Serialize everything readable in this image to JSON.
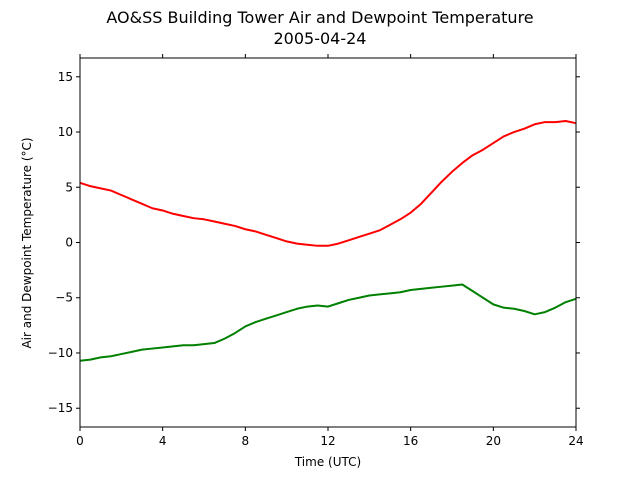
{
  "chart_data": {
    "type": "line",
    "title": "AO&SS Building Tower Air and Dewpoint Temperature",
    "subtitle": "2005-04-24",
    "xlabel": "Time (UTC)",
    "ylabel": "Air and Dewpoint Temperature (°C)",
    "xlim": [
      0,
      24
    ],
    "ylim": [
      -16.7,
      16.7
    ],
    "xticks": [
      0,
      4,
      8,
      12,
      16,
      20,
      24
    ],
    "yticks": [
      -15,
      -10,
      -5,
      0,
      5,
      10,
      15
    ],
    "grid": false,
    "legend": "none",
    "series": [
      {
        "color": "#ff0000",
        "x": [
          0,
          0.5,
          1,
          1.5,
          2,
          2.5,
          3,
          3.5,
          4,
          4.5,
          5,
          5.5,
          6,
          6.5,
          7,
          7.5,
          8,
          8.5,
          9,
          9.5,
          10,
          10.5,
          11,
          11.5,
          12,
          12.5,
          13,
          13.5,
          14,
          14.5,
          15,
          15.5,
          16,
          16.5,
          17,
          17.5,
          18,
          18.5,
          19,
          19.5,
          20,
          20.5,
          21,
          21.5,
          22,
          22.5,
          23,
          23.5,
          24
        ],
        "y": [
          5.4,
          5.1,
          4.9,
          4.7,
          4.3,
          3.9,
          3.5,
          3.1,
          2.9,
          2.6,
          2.4,
          2.2,
          2.1,
          1.9,
          1.7,
          1.5,
          1.2,
          1.0,
          0.7,
          0.4,
          0.1,
          -0.1,
          -0.2,
          -0.3,
          -0.3,
          -0.1,
          0.2,
          0.5,
          0.8,
          1.1,
          1.6,
          2.1,
          2.7,
          3.5,
          4.5,
          5.5,
          6.4,
          7.2,
          7.9,
          8.4,
          9.0,
          9.6,
          10.0,
          10.3,
          10.7,
          10.9,
          10.9,
          11.0,
          10.8
        ]
      },
      {
        "color": "#008000",
        "x": [
          0,
          0.5,
          1,
          1.5,
          2,
          2.5,
          3,
          3.5,
          4,
          4.5,
          5,
          5.5,
          6,
          6.5,
          7,
          7.5,
          8,
          8.5,
          9,
          9.5,
          10,
          10.5,
          11,
          11.5,
          12,
          12.5,
          13,
          13.5,
          14,
          14.5,
          15,
          15.5,
          16,
          16.5,
          17,
          17.5,
          18,
          18.5,
          19,
          19.5,
          20,
          20.5,
          21,
          21.5,
          22,
          22.5,
          23,
          23.5,
          24
        ],
        "y": [
          -10.7,
          -10.6,
          -10.4,
          -10.3,
          -10.1,
          -9.9,
          -9.7,
          -9.6,
          -9.5,
          -9.4,
          -9.3,
          -9.3,
          -9.2,
          -9.1,
          -8.7,
          -8.2,
          -7.6,
          -7.2,
          -6.9,
          -6.6,
          -6.3,
          -6.0,
          -5.8,
          -5.7,
          -5.8,
          -5.5,
          -5.2,
          -5.0,
          -4.8,
          -4.7,
          -4.6,
          -4.5,
          -4.3,
          -4.2,
          -4.1,
          -4.0,
          -3.9,
          -3.8,
          -4.4,
          -5.0,
          -5.6,
          -5.9,
          -6.0,
          -6.2,
          -6.5,
          -6.3,
          -5.9,
          -5.4,
          -5.1
        ]
      }
    ]
  }
}
